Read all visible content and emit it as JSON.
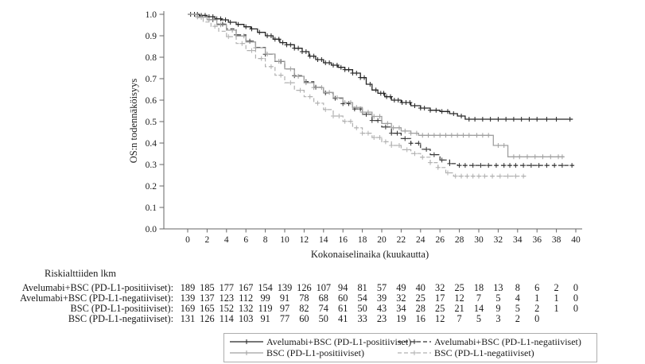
{
  "chart_data": {
    "type": "line",
    "subtype": "kaplan-meier-step",
    "title": "",
    "xlabel": "Kokonaiselinaika (kuukautta)",
    "ylabel": "OS:n todennäköisyys",
    "xlim": [
      0,
      40
    ],
    "ylim": [
      0.0,
      1.0
    ],
    "xticks": [
      0,
      2,
      4,
      6,
      8,
      10,
      12,
      14,
      16,
      18,
      20,
      22,
      24,
      26,
      28,
      30,
      32,
      34,
      36,
      38,
      40
    ],
    "yticks": [
      0.0,
      0.1,
      0.2,
      0.3,
      0.4,
      0.5,
      0.6,
      0.7,
      0.8,
      0.9,
      1.0
    ],
    "grid": false,
    "legend_position": "bottom",
    "axis_color": "#666666",
    "series": [
      {
        "name": "Avelumabi+BSC (PD-L1-positiiviset)",
        "color": "#262626",
        "dash": "solid",
        "marker": "+",
        "end_month": 39.7,
        "steps": [
          [
            1.2,
            0.995
          ],
          [
            2,
            0.989
          ],
          [
            2.8,
            0.979
          ],
          [
            3.5,
            0.974
          ],
          [
            4.2,
            0.963
          ],
          [
            5,
            0.953
          ],
          [
            5.8,
            0.942
          ],
          [
            6.5,
            0.932
          ],
          [
            7.2,
            0.916
          ],
          [
            8,
            0.9
          ],
          [
            8.8,
            0.884
          ],
          [
            9.5,
            0.868
          ],
          [
            10.2,
            0.858
          ],
          [
            11,
            0.842
          ],
          [
            11.8,
            0.826
          ],
          [
            12.5,
            0.805
          ],
          [
            13.2,
            0.789
          ],
          [
            14,
            0.774
          ],
          [
            14.8,
            0.763
          ],
          [
            15.5,
            0.753
          ],
          [
            16.2,
            0.742
          ],
          [
            17,
            0.726
          ],
          [
            17.8,
            0.705
          ],
          [
            18.4,
            0.674
          ],
          [
            19,
            0.647
          ],
          [
            19.6,
            0.632
          ],
          [
            20.3,
            0.616
          ],
          [
            21,
            0.6
          ],
          [
            22,
            0.589
          ],
          [
            23,
            0.574
          ],
          [
            24,
            0.563
          ],
          [
            25,
            0.553
          ],
          [
            26,
            0.547
          ],
          [
            27,
            0.537
          ],
          [
            27.8,
            0.526
          ],
          [
            28.6,
            0.511
          ]
        ],
        "censor_times": [
          0.3,
          0.7,
          1,
          1.4,
          1.8,
          2.2,
          2.6,
          3,
          3.4,
          3.9,
          4.4,
          5.2,
          6,
          6.6,
          7.4,
          8.2,
          8.6,
          9,
          9.4,
          9.8,
          10.2,
          10.6,
          11,
          11.4,
          11.8,
          12.2,
          12.6,
          13,
          13.4,
          13.8,
          14.2,
          14.6,
          15,
          15.4,
          15.8,
          16.2,
          16.6,
          17,
          17.4,
          17.8,
          18.2,
          18.8,
          19.4,
          19.9,
          20.2,
          20.5,
          20.9,
          21.3,
          21.7,
          22.1,
          22.5,
          22.9,
          23.4,
          24,
          24.4,
          25,
          25.6,
          26.2,
          26.8,
          27.4,
          28.2,
          29,
          29.6,
          30.4,
          31.2,
          32,
          32.8,
          33.6,
          34.4,
          35.2,
          36,
          37,
          38,
          39.4
        ]
      },
      {
        "name": "Avelumabi+BSC (PD-L1-negatiiviset)",
        "color": "#333333",
        "dash": "dashed",
        "marker": "+",
        "end_month": 39.8,
        "steps": [
          [
            1,
            0.993
          ],
          [
            2,
            0.975
          ],
          [
            3,
            0.954
          ],
          [
            4,
            0.932
          ],
          [
            5,
            0.904
          ],
          [
            6,
            0.875
          ],
          [
            7,
            0.846
          ],
          [
            8,
            0.814
          ],
          [
            9,
            0.78
          ],
          [
            10,
            0.746
          ],
          [
            11,
            0.714
          ],
          [
            12,
            0.686
          ],
          [
            13,
            0.66
          ],
          [
            14,
            0.634
          ],
          [
            15,
            0.609
          ],
          [
            16,
            0.584
          ],
          [
            17,
            0.559
          ],
          [
            18,
            0.534
          ],
          [
            19,
            0.505
          ],
          [
            20,
            0.475
          ],
          [
            21,
            0.446
          ],
          [
            22,
            0.421
          ],
          [
            23,
            0.399
          ],
          [
            24,
            0.371
          ],
          [
            25,
            0.346
          ],
          [
            26,
            0.321
          ],
          [
            27,
            0.304
          ],
          [
            27.8,
            0.296
          ]
        ],
        "censor_times": [
          2.6,
          3.6,
          5,
          6.4,
          8,
          9.6,
          11,
          12.2,
          13.2,
          14.2,
          15.2,
          16,
          16.6,
          17.2,
          17.8,
          18.4,
          19,
          19.6,
          20.4,
          21,
          21.6,
          22.4,
          23,
          23.8,
          24.6,
          25.4,
          26.2,
          27,
          28,
          28.6,
          29.4,
          30.2,
          31,
          31.8,
          32.6,
          33.2,
          33.8,
          34.6,
          35.4,
          36.2,
          37,
          37.8,
          38.6,
          39.6
        ]
      },
      {
        "name": "BSC (PD-L1-positiiviset)",
        "color": "#a0a0a0",
        "dash": "solid",
        "marker": "+",
        "end_month": 38.8,
        "steps": [
          [
            1,
            0.988
          ],
          [
            2,
            0.974
          ],
          [
            3,
            0.951
          ],
          [
            4,
            0.926
          ],
          [
            5,
            0.899
          ],
          [
            6,
            0.871
          ],
          [
            7,
            0.844
          ],
          [
            8,
            0.815
          ],
          [
            9,
            0.781
          ],
          [
            10,
            0.746
          ],
          [
            11,
            0.711
          ],
          [
            12,
            0.681
          ],
          [
            13,
            0.659
          ],
          [
            14,
            0.636
          ],
          [
            15,
            0.611
          ],
          [
            16,
            0.589
          ],
          [
            17,
            0.566
          ],
          [
            18,
            0.544
          ],
          [
            19,
            0.524
          ],
          [
            20,
            0.491
          ],
          [
            21,
            0.471
          ],
          [
            22,
            0.456
          ],
          [
            23,
            0.446
          ],
          [
            23.8,
            0.436
          ],
          [
            31.5,
            0.389
          ],
          [
            33,
            0.336
          ]
        ],
        "censor_times": [
          1,
          2.2,
          3.4,
          4.6,
          5.8,
          7,
          8.2,
          9.4,
          10.6,
          11.4,
          12.2,
          13,
          13.8,
          14.6,
          15.4,
          16.2,
          16.8,
          17.4,
          18,
          18.6,
          19.2,
          19.8,
          20.6,
          21.2,
          21.8,
          22.4,
          23,
          23.6,
          24.2,
          24.8,
          25.4,
          26,
          26.6,
          27.2,
          27.8,
          28.4,
          29,
          29.8,
          30.4,
          31,
          32,
          32.6,
          33.6,
          34.2,
          35,
          35.8,
          36.6,
          37.4,
          38.2,
          38.6
        ]
      },
      {
        "name": "BSC (PD-L1-negatiiviset)",
        "color": "#b0b0b0",
        "dash": "dashed",
        "marker": "+",
        "end_month": 35,
        "steps": [
          [
            0.8,
            0.985
          ],
          [
            1.6,
            0.964
          ],
          [
            2.4,
            0.944
          ],
          [
            3.2,
            0.921
          ],
          [
            4,
            0.896
          ],
          [
            5,
            0.864
          ],
          [
            6,
            0.831
          ],
          [
            7,
            0.794
          ],
          [
            8,
            0.756
          ],
          [
            9,
            0.716
          ],
          [
            10,
            0.681
          ],
          [
            11,
            0.646
          ],
          [
            12,
            0.616
          ],
          [
            13,
            0.586
          ],
          [
            14,
            0.556
          ],
          [
            15,
            0.526
          ],
          [
            16,
            0.501
          ],
          [
            17,
            0.471
          ],
          [
            18,
            0.446
          ],
          [
            19,
            0.426
          ],
          [
            20,
            0.406
          ],
          [
            21,
            0.389
          ],
          [
            22,
            0.369
          ],
          [
            23,
            0.351
          ],
          [
            24,
            0.334
          ],
          [
            25,
            0.309
          ],
          [
            25.8,
            0.286
          ],
          [
            26.6,
            0.261
          ],
          [
            27.4,
            0.246
          ]
        ],
        "censor_times": [
          1.4,
          2.8,
          4.2,
          5.6,
          6.6,
          7.6,
          8.6,
          9.6,
          10.6,
          11.6,
          12.6,
          13.4,
          14.2,
          15,
          15.6,
          16.2,
          16.8,
          17.4,
          18,
          18.6,
          19.2,
          19.8,
          20.4,
          21,
          21.8,
          22.6,
          23.4,
          24.2,
          25,
          25.8,
          26.8,
          27.6,
          28.2,
          28.8,
          29.4,
          30,
          30.6,
          31.4,
          32.2,
          33,
          33.8,
          34.6
        ]
      }
    ],
    "risk_table": {
      "title": "Riskialttiiden lkm",
      "time_points": [
        0,
        2,
        4,
        6,
        8,
        10,
        12,
        14,
        16,
        18,
        20,
        22,
        24,
        26,
        28,
        30,
        32,
        34,
        36,
        38,
        40
      ],
      "rows": [
        {
          "label": "Avelumabi+BSC (PD-L1-positiiviset):",
          "counts": [
            189,
            185,
            177,
            167,
            154,
            139,
            126,
            107,
            94,
            81,
            57,
            49,
            40,
            32,
            25,
            18,
            13,
            8,
            6,
            2,
            0
          ]
        },
        {
          "label": "Avelumabi+BSC (PD-L1-negatiiviset):",
          "counts": [
            139,
            137,
            123,
            112,
            99,
            91,
            78,
            68,
            60,
            54,
            39,
            32,
            25,
            17,
            12,
            7,
            5,
            4,
            1,
            1,
            0
          ]
        },
        {
          "label": "BSC (PD-L1-positiiviset):",
          "counts": [
            169,
            165,
            152,
            132,
            119,
            97,
            82,
            74,
            61,
            50,
            43,
            34,
            28,
            25,
            21,
            14,
            9,
            5,
            2,
            1,
            0
          ]
        },
        {
          "label": "BSC (PD-L1-negatiiviset):",
          "counts": [
            131,
            126,
            114,
            103,
            91,
            77,
            60,
            50,
            41,
            33,
            23,
            19,
            16,
            12,
            7,
            5,
            3,
            2,
            0
          ]
        }
      ]
    },
    "legend": {
      "layout": [
        [
          0,
          1
        ],
        [
          2,
          3
        ]
      ],
      "border_color": "#adadad"
    }
  }
}
